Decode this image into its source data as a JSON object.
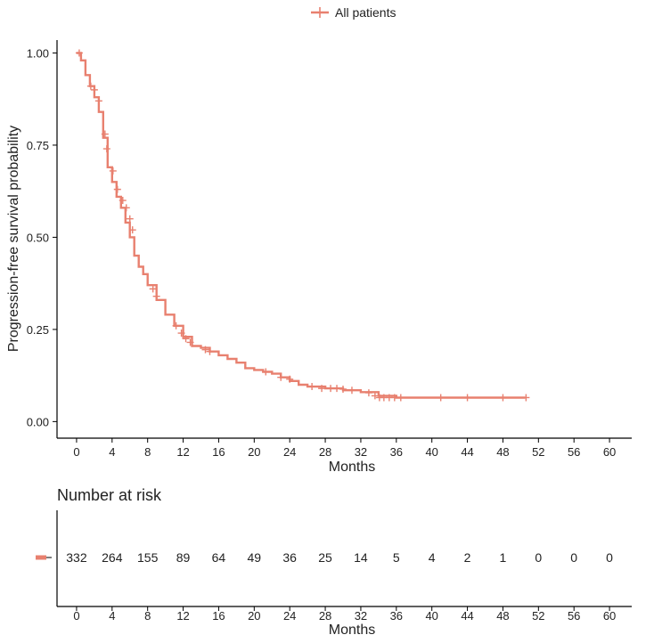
{
  "chart_data": {
    "type": "line",
    "subtype": "kaplan-meier",
    "title": "",
    "legend": {
      "position": "top",
      "entries": [
        "All patients"
      ]
    },
    "colors": {
      "series": "#e8806f",
      "axis": "#000000"
    },
    "xlabel": "Months",
    "ylabel": "Progression-free survival probability",
    "xlim": [
      -2.2,
      62.5
    ],
    "ylim": [
      -0.045,
      1.035
    ],
    "x_ticks": [
      "0",
      "4",
      "8",
      "12",
      "16",
      "20",
      "24",
      "28",
      "32",
      "36",
      "40",
      "44",
      "48",
      "52",
      "56",
      "60"
    ],
    "y_ticks": [
      "0.00",
      "0.25",
      "0.50",
      "0.75",
      "1.00"
    ],
    "series": [
      {
        "name": "All patients",
        "steps": [
          [
            0,
            1.0
          ],
          [
            0.5,
            0.98
          ],
          [
            1,
            0.94
          ],
          [
            1.5,
            0.91
          ],
          [
            2,
            0.88
          ],
          [
            2.5,
            0.84
          ],
          [
            3,
            0.77
          ],
          [
            3.5,
            0.69
          ],
          [
            4,
            0.65
          ],
          [
            4.5,
            0.61
          ],
          [
            5,
            0.58
          ],
          [
            5.5,
            0.54
          ],
          [
            6,
            0.5
          ],
          [
            6.5,
            0.45
          ],
          [
            7,
            0.42
          ],
          [
            7.5,
            0.4
          ],
          [
            8,
            0.37
          ],
          [
            9,
            0.33
          ],
          [
            10,
            0.29
          ],
          [
            11,
            0.26
          ],
          [
            12,
            0.23
          ],
          [
            13,
            0.205
          ],
          [
            14,
            0.2
          ],
          [
            15,
            0.19
          ],
          [
            16,
            0.18
          ],
          [
            17,
            0.17
          ],
          [
            18,
            0.16
          ],
          [
            19,
            0.145
          ],
          [
            20,
            0.14
          ],
          [
            21,
            0.135
          ],
          [
            22,
            0.13
          ],
          [
            23,
            0.12
          ],
          [
            24,
            0.11
          ],
          [
            25,
            0.1
          ],
          [
            26,
            0.095
          ],
          [
            28,
            0.09
          ],
          [
            30,
            0.085
          ],
          [
            32,
            0.08
          ],
          [
            34,
            0.07
          ],
          [
            36,
            0.065
          ],
          [
            50.5,
            0.065
          ]
        ],
        "censors": [
          [
            0.3,
            1.0
          ],
          [
            1.6,
            0.91
          ],
          [
            2.0,
            0.9
          ],
          [
            2.5,
            0.87
          ],
          [
            3.2,
            0.78
          ],
          [
            3.4,
            0.74
          ],
          [
            4.1,
            0.68
          ],
          [
            4.6,
            0.63
          ],
          [
            5.2,
            0.6
          ],
          [
            5.6,
            0.58
          ],
          [
            6.0,
            0.55
          ],
          [
            6.3,
            0.52
          ],
          [
            8.6,
            0.36
          ],
          [
            9.0,
            0.34
          ],
          [
            11.2,
            0.26
          ],
          [
            11.8,
            0.24
          ],
          [
            12.3,
            0.225
          ],
          [
            12.8,
            0.215
          ],
          [
            14.5,
            0.195
          ],
          [
            15.0,
            0.19
          ],
          [
            21.3,
            0.135
          ],
          [
            23.0,
            0.12
          ],
          [
            24.0,
            0.115
          ],
          [
            26.5,
            0.095
          ],
          [
            27.6,
            0.09
          ],
          [
            28.6,
            0.09
          ],
          [
            29.3,
            0.09
          ],
          [
            30.0,
            0.088
          ],
          [
            31.0,
            0.085
          ],
          [
            32.9,
            0.078
          ],
          [
            33.6,
            0.07
          ],
          [
            34.1,
            0.065
          ],
          [
            34.6,
            0.065
          ],
          [
            35.2,
            0.065
          ],
          [
            35.8,
            0.065
          ],
          [
            36.5,
            0.065
          ],
          [
            41.0,
            0.065
          ],
          [
            44.0,
            0.065
          ],
          [
            48.0,
            0.065
          ],
          [
            50.6,
            0.065
          ]
        ]
      }
    ],
    "risk_table": {
      "title": "Number at risk",
      "xlabel": "Months",
      "times": [
        0,
        4,
        8,
        12,
        16,
        20,
        24,
        28,
        32,
        36,
        40,
        44,
        48,
        52,
        56,
        60
      ],
      "counts": [
        "332",
        "264",
        "155",
        "89",
        "64",
        "49",
        "36",
        "25",
        "14",
        "5",
        "4",
        "2",
        "1",
        "0",
        "0",
        "0"
      ]
    }
  }
}
